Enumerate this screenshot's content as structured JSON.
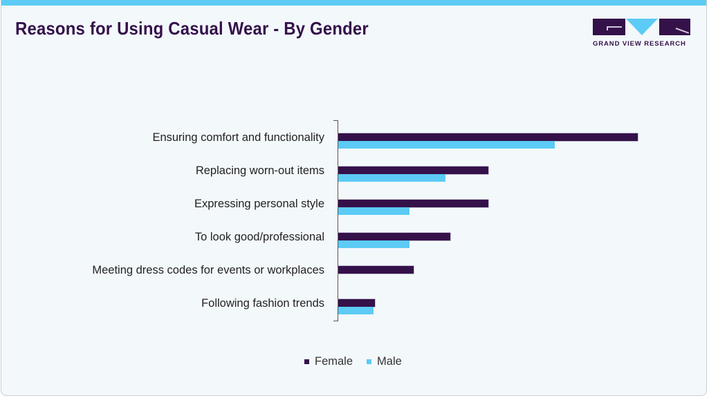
{
  "header": {
    "title": "Reasons for Using Casual Wear - By Gender",
    "logo_text": "GRAND VIEW RESEARCH"
  },
  "colors": {
    "female": "#35114a",
    "male": "#5ccbf5",
    "title": "#34114a",
    "accent_bar": "#5ccbf5",
    "background": "#f3f8fb"
  },
  "legend": [
    {
      "label": "Female",
      "color": "#35114a"
    },
    {
      "label": "Male",
      "color": "#5ccbf5"
    }
  ],
  "chart_data": {
    "type": "bar",
    "orientation": "horizontal",
    "title": "Reasons for Using Casual Wear - By Gender",
    "xlabel": "",
    "ylabel": "",
    "value_axis_visible": false,
    "grid": false,
    "legend_position": "bottom",
    "units": "relative (no value axis shown; estimated from bar lengths)",
    "categories": [
      "Ensuring comfort and functionality",
      "Replacing worn-out items",
      "Expressing personal style",
      "To look good/professional",
      "Meeting dress codes for events or workplaces",
      "Following fashion trends"
    ],
    "series": [
      {
        "name": "Female",
        "color": "#35114a",
        "values": [
          433,
          217,
          217,
          162,
          109,
          53
        ]
      },
      {
        "name": "Male",
        "color": "#5ccbf5",
        "values": [
          313,
          155,
          103,
          103,
          0,
          51
        ]
      }
    ]
  }
}
